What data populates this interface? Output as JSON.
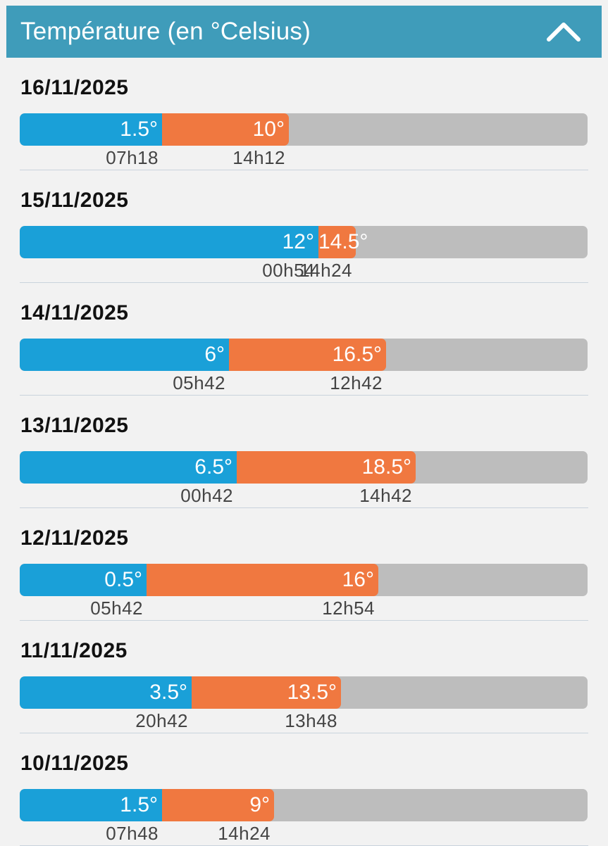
{
  "header": {
    "title": "Température (en °Celsius)",
    "collapse_icon": "chevron-up-icon"
  },
  "colors": {
    "header": "#3f9cba",
    "min": "#1aa0d8",
    "max": "#f07840",
    "track": "#bdbdbd"
  },
  "scale": {
    "min": -8,
    "max": 30
  },
  "days": [
    {
      "date": "16/11/2025",
      "min": 1.5,
      "min_label": "1.5°",
      "min_time": "07h18",
      "max": 10,
      "max_label": "10°",
      "max_time": "14h12"
    },
    {
      "date": "15/11/2025",
      "min": 12,
      "min_label": "12°",
      "min_time": "00h54",
      "max": 14.5,
      "max_label": "14.5°",
      "max_time": "14h24"
    },
    {
      "date": "14/11/2025",
      "min": 6,
      "min_label": "6°",
      "min_time": "05h42",
      "max": 16.5,
      "max_label": "16.5°",
      "max_time": "12h42"
    },
    {
      "date": "13/11/2025",
      "min": 6.5,
      "min_label": "6.5°",
      "min_time": "00h42",
      "max": 18.5,
      "max_label": "18.5°",
      "max_time": "14h42"
    },
    {
      "date": "12/11/2025",
      "min": 0.5,
      "min_label": "0.5°",
      "min_time": "05h42",
      "max": 16,
      "max_label": "16°",
      "max_time": "12h54"
    },
    {
      "date": "11/11/2025",
      "min": 3.5,
      "min_label": "3.5°",
      "min_time": "20h42",
      "max": 13.5,
      "max_label": "13.5°",
      "max_time": "13h48"
    },
    {
      "date": "10/11/2025",
      "min": 1.5,
      "min_label": "1.5°",
      "min_time": "07h48",
      "max": 9,
      "max_label": "9°",
      "max_time": "14h24"
    }
  ]
}
